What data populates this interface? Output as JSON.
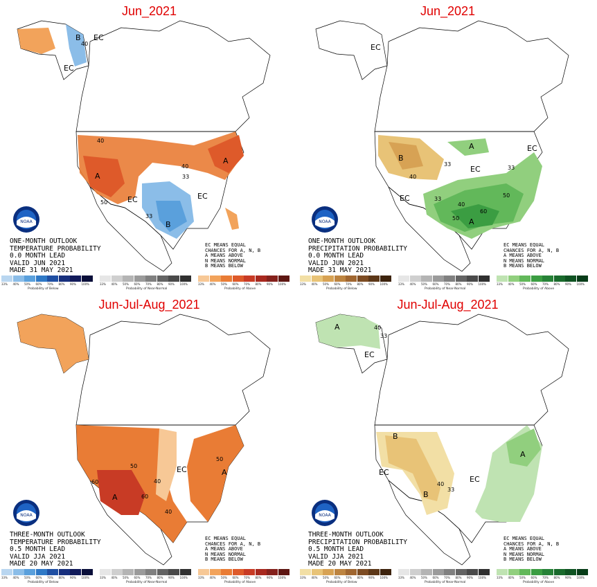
{
  "panels": [
    {
      "title": "Jun_2021",
      "lines": [
        "ONE-MONTH OUTLOOK",
        "TEMPERATURE PROBABILITY",
        "0.0 MONTH LEAD",
        "VALID JUN 2021",
        "MADE 31 MAY 2021"
      ],
      "kind": "temperature",
      "labels": {
        "B": "B",
        "A": "A",
        "EC": "EC",
        "n33": "33",
        "n40": "40",
        "n50": "50"
      }
    },
    {
      "title": "Jun_2021",
      "lines": [
        "ONE-MONTH OUTLOOK",
        "PRECIPITATION PROBABILITY",
        "0.0 MONTH LEAD",
        "VALID JUN 2021",
        "MADE 31 MAY 2021"
      ],
      "kind": "precipitation",
      "labels": {
        "B": "B",
        "A": "A",
        "EC": "EC",
        "n33": "33",
        "n40": "40",
        "n50": "50",
        "n60": "60"
      }
    },
    {
      "title": "Jun-Jul-Aug_2021",
      "lines": [
        "THREE-MONTH OUTLOOK",
        "TEMPERATURE PROBABILITY",
        "0.5 MONTH LEAD",
        "VALID JJA 2021",
        "MADE 20 MAY 2021"
      ],
      "kind": "temperature",
      "labels": {
        "A": "A",
        "EC": "EC",
        "n40": "40",
        "n50": "50",
        "n60": "60"
      }
    },
    {
      "title": "Jun-Jul-Aug_2021",
      "lines": [
        "THREE-MONTH OUTLOOK",
        "PRECIPITATION PROBABILITY",
        "0.5 MONTH LEAD",
        "VALID JJA 2021",
        "MADE 20 MAY 2021"
      ],
      "kind": "precipitation",
      "labels": {
        "A": "A",
        "B": "B",
        "EC": "EC",
        "n33": "33",
        "n40": "40"
      }
    }
  ],
  "ec_legend": [
    "EC MEANS EQUAL",
    "CHANCES FOR A, N, B",
    "A MEANS ABOVE",
    "N MEANS NORMAL",
    "B MEANS BELOW"
  ],
  "logo_text": "NOAA",
  "colorbar_ticks": [
    "33%",
    "40%",
    "50%",
    "60%",
    "70%",
    "80%",
    "90%",
    "100%"
  ],
  "colorbar_labels": {
    "below": "Probability of Below",
    "normal": "Probability of Near-Normal",
    "above": "Probability of Above"
  },
  "palettes": {
    "temperature": {
      "below": [
        "#b9d6f0",
        "#8bbde8",
        "#5aa0dc",
        "#2f79c6",
        "#1f4fa3",
        "#172f7d",
        "#111a5a",
        "#0a0f3a"
      ],
      "normal": [
        "#e6e6e6",
        "#cfcfcf",
        "#b4b4b4",
        "#9b9b9b",
        "#808080",
        "#646464",
        "#4a4a4a",
        "#303030"
      ],
      "above": [
        "#f7c896",
        "#f2a35b",
        "#e97c35",
        "#de5a2a",
        "#c83b25",
        "#a8291f",
        "#85211c",
        "#5e1612"
      ]
    },
    "precipitation": {
      "below": [
        "#f2dfa5",
        "#e8c377",
        "#d7a254",
        "#bd8440",
        "#a06630",
        "#7d4c23",
        "#5c3718",
        "#3d230d"
      ],
      "normal": [
        "#e6e6e6",
        "#cfcfcf",
        "#b4b4b4",
        "#9b9b9b",
        "#808080",
        "#646464",
        "#4a4a4a",
        "#303030"
      ],
      "above": [
        "#bfe3b2",
        "#91cf7e",
        "#62b85a",
        "#3b9d42",
        "#278237",
        "#196a2c",
        "#0f5322",
        "#073c18"
      ]
    }
  }
}
